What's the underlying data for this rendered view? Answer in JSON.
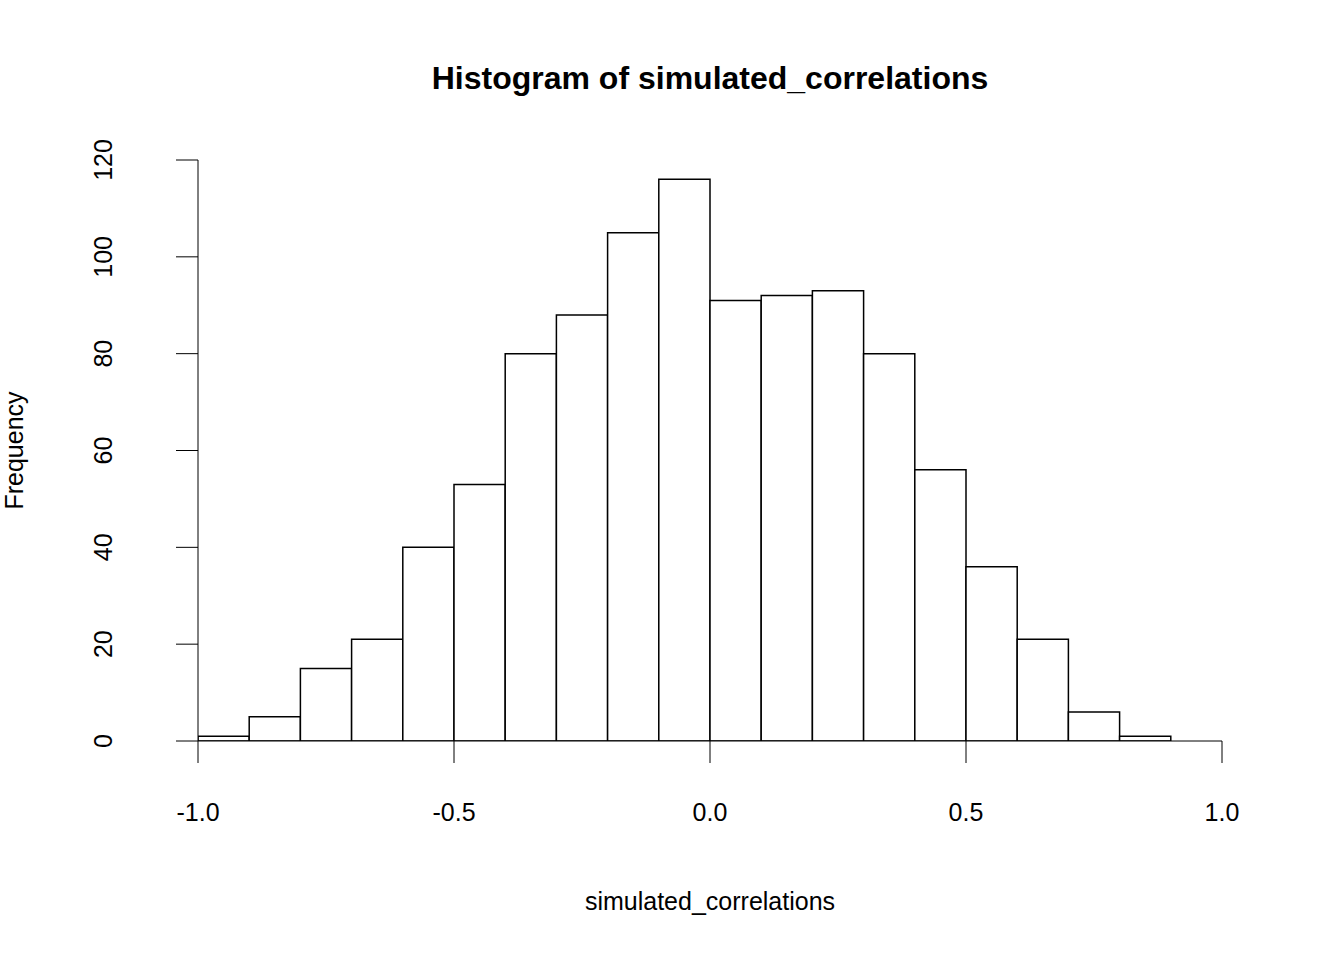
{
  "chart_data": {
    "type": "histogram",
    "title": "Histogram of simulated_correlations",
    "x_label": "simulated_correlations",
    "y_label": "Frequency",
    "bins": [
      -1.0,
      -0.9,
      -0.8,
      -0.7,
      -0.6,
      -0.5,
      -0.4,
      -0.3,
      -0.2,
      -0.1,
      0.0,
      0.1,
      0.2,
      0.3,
      0.4,
      0.5,
      0.6,
      0.7,
      0.8,
      0.9
    ],
    "values": [
      1,
      5,
      15,
      21,
      40,
      53,
      80,
      88,
      105,
      116,
      91,
      92,
      93,
      80,
      56,
      36,
      21,
      6,
      1
    ],
    "color": "#ffffff",
    "xlim": [
      -1,
      1
    ],
    "xticks": [
      {
        "value": -1,
        "label": "-1.0"
      },
      -0.5,
      {
        "value": 0,
        "label": "0.0"
      },
      0.5,
      {
        "value": 1,
        "label": "1.0"
      }
    ],
    "ylim": [
      0,
      120
    ],
    "yticks": [
      0,
      20,
      40,
      60,
      80,
      100,
      120
    ],
    "grid": false
  }
}
